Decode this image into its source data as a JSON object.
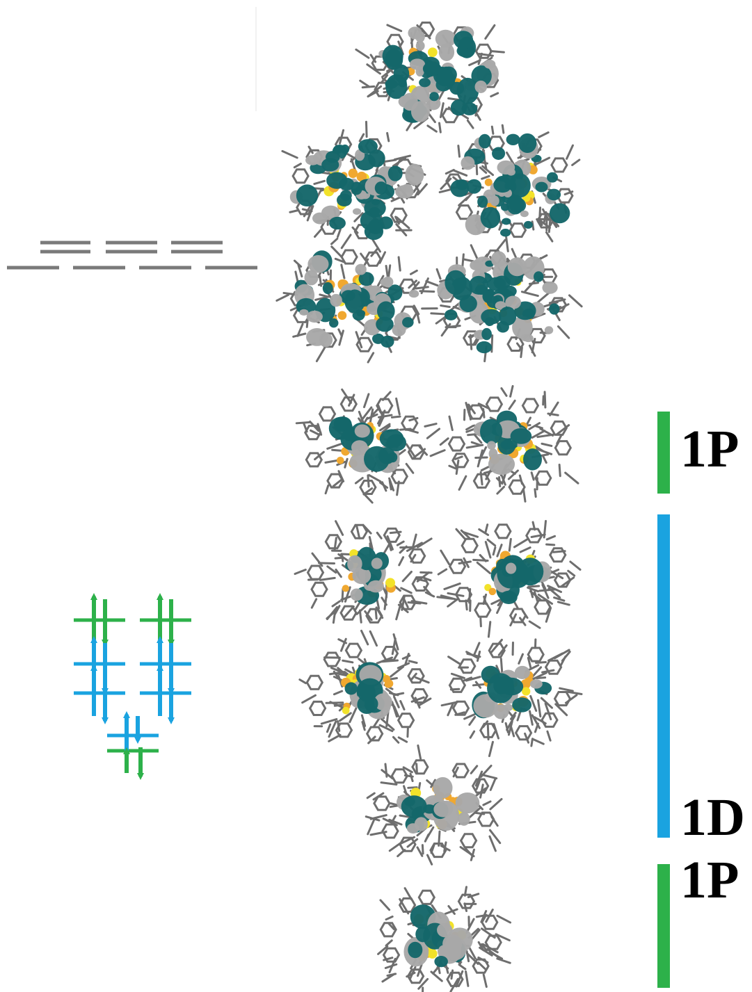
{
  "colors": {
    "level_gray": "#7a7a7a",
    "p_band": "#2db14a",
    "d_band": "#1aa3e0",
    "lobe_teal": "#15676a",
    "lobe_gray": "#a8a8a8",
    "atom_gold": "#f0a830",
    "atom_yellow": "#f2e22a",
    "frame_gray": "#6e6e6e"
  },
  "bands": [
    {
      "id": "p-upper",
      "label": "1P",
      "color": "green"
    },
    {
      "id": "d",
      "label": "1D",
      "color": "blue"
    },
    {
      "id": "p-lower",
      "label": "1P",
      "color": "green"
    }
  ],
  "orbitals": {
    "unoccupied": {
      "count": 5,
      "density": "heavy"
    },
    "p_upper": {
      "count": 2,
      "density": "medium"
    },
    "d": {
      "count": 5,
      "density": "medium"
    },
    "p_lower": {
      "count": 1,
      "density": "medium"
    }
  },
  "energy_levels": {
    "unoccupied_upper_row": 3,
    "unoccupied_lower_row": 4,
    "occupied_levels": 5,
    "electrons_per_level": 2
  }
}
